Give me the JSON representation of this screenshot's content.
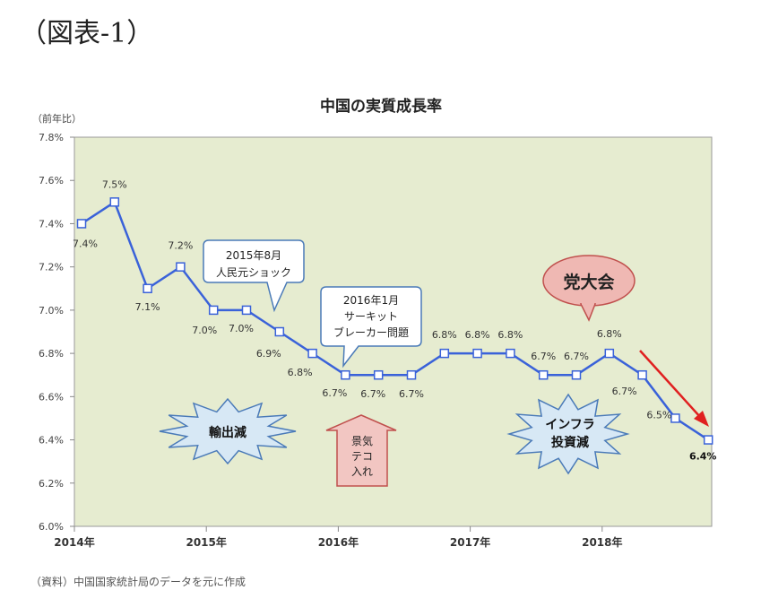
{
  "figure_label": "（図表-1）",
  "source_note": "（資料）中国国家統計局のデータを元に作成",
  "chart_data": {
    "type": "line",
    "title": "中国の実質成長率",
    "ylabel": "（前年比）",
    "xlabel": "",
    "ylim": [
      6.0,
      7.8
    ],
    "yticks": [
      "6.0%",
      "6.2%",
      "6.4%",
      "6.6%",
      "6.8%",
      "7.0%",
      "7.2%",
      "7.4%",
      "7.6%",
      "7.8%"
    ],
    "ytick_values": [
      6.0,
      6.2,
      6.4,
      6.6,
      6.8,
      7.0,
      7.2,
      7.4,
      7.6,
      7.8
    ],
    "xticks": [
      "2014年",
      "2015年",
      "2016年",
      "2017年",
      "2018年"
    ],
    "grid": false,
    "plot_bg": "#e6ecd0",
    "line_color": "#3a62d9",
    "series": [
      {
        "x": [
          "2014Q1",
          "2014Q2",
          "2014Q3",
          "2014Q4",
          "2015Q1",
          "2015Q2",
          "2015Q3",
          "2015Q4",
          "2016Q1",
          "2016Q2",
          "2016Q3",
          "2016Q4",
          "2017Q1",
          "2017Q2",
          "2017Q3",
          "2017Q4",
          "2018Q1",
          "2018Q2",
          "2018Q3",
          "2018Q4"
        ],
        "values": [
          7.4,
          7.5,
          7.1,
          7.2,
          7.0,
          7.0,
          6.9,
          6.8,
          6.7,
          6.7,
          6.7,
          6.8,
          6.8,
          6.8,
          6.7,
          6.7,
          6.8,
          6.7,
          6.5,
          6.4
        ],
        "labels": [
          "7.4%",
          "7.5%",
          "7.1%",
          "7.2%",
          "7.0%",
          "7.0%",
          "6.9%",
          "6.8%",
          "6.7%",
          "6.7%",
          "6.7%",
          "6.8%",
          "6.8%",
          "6.8%",
          "6.7%",
          "6.7%",
          "6.8%",
          "6.7%",
          "6.5%",
          "6.4%"
        ]
      }
    ],
    "annotations": {
      "callout_2015": [
        "2015年8月",
        "人民元ショック"
      ],
      "callout_2016": [
        "2016年1月",
        "サーキット",
        "ブレーカー問題"
      ],
      "burst_export": "輸出減",
      "arrow_stimulus": [
        "景気",
        "テコ",
        "入れ"
      ],
      "bubble_party": "党大会",
      "burst_infra": [
        "インフラ",
        "投資減"
      ]
    }
  }
}
